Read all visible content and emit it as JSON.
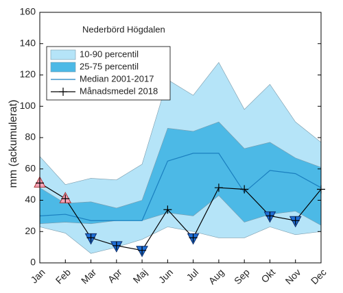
{
  "chart_data": {
    "type": "line",
    "title": "Nederbörd Högdalen",
    "y_label": "mm (ackumulerat)",
    "categories": [
      "Jan",
      "Feb",
      "Mar",
      "Apr",
      "Maj",
      "Jun",
      "Jul",
      "Aug",
      "Sep",
      "Okt",
      "Nov",
      "Dec"
    ],
    "ylim": [
      0,
      160
    ],
    "yticks": [
      0,
      20,
      40,
      60,
      80,
      100,
      120,
      140,
      160
    ],
    "bands": [
      {
        "name": "10-90 percentil",
        "color": "#b5e4f8",
        "lower": [
          23,
          19,
          6,
          10,
          15,
          23,
          20,
          16,
          16,
          23,
          18,
          20
        ],
        "upper": [
          68,
          50,
          54,
          53,
          63,
          117,
          107,
          128,
          98,
          114,
          90,
          77
        ]
      },
      {
        "name": "25-75 percentil",
        "color": "#4cb9e6",
        "lower": [
          25,
          26,
          25,
          27,
          27,
          32,
          30,
          43,
          26,
          31,
          33,
          24
        ],
        "upper": [
          48,
          38,
          39,
          35,
          40,
          86,
          84,
          90,
          73,
          77,
          67,
          61
        ]
      }
    ],
    "series": [
      {
        "name": "Median 2001-2017",
        "color": "#1a7fbf",
        "values": [
          30,
          31,
          27,
          27,
          27,
          65,
          70,
          70,
          45,
          59,
          57,
          48
        ]
      },
      {
        "name": "Månadsmedel 2018",
        "color": "#000000",
        "values": [
          51,
          41,
          16,
          11,
          8,
          34,
          16,
          48,
          47,
          30,
          27,
          47
        ],
        "markers": [
          "up",
          "up",
          "down",
          "down",
          "down",
          "none",
          "down",
          "none",
          "none",
          "down",
          "down",
          "none"
        ]
      }
    ]
  }
}
